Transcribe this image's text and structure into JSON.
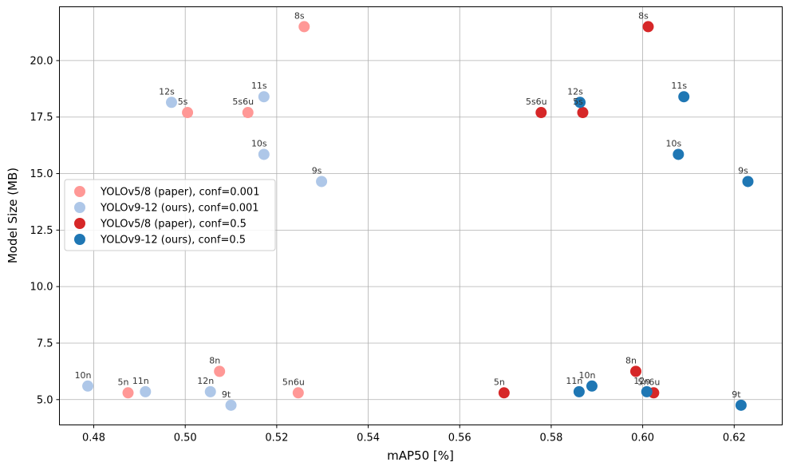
{
  "chart_data": {
    "type": "scatter",
    "xlabel": "mAP50 [%]",
    "ylabel": "Model Size (MB)",
    "xlim": [
      0.4725,
      0.6305
    ],
    "ylim": [
      3.88,
      22.38
    ],
    "xticks": [
      "0.48",
      "0.50",
      "0.52",
      "0.54",
      "0.56",
      "0.58",
      "0.60",
      "0.62"
    ],
    "xtick_values": [
      0.48,
      0.5,
      0.52,
      0.54,
      0.56,
      0.58,
      0.6,
      0.62
    ],
    "yticks": [
      "5.0",
      "7.5",
      "10.0",
      "12.5",
      "15.0",
      "17.5",
      "20.0"
    ],
    "ytick_values": [
      5.0,
      7.5,
      10.0,
      12.5,
      15.0,
      17.5,
      20.0
    ],
    "grid": true,
    "legend_position": "center-left",
    "series": [
      {
        "name": "YOLOv5/8 (paper), conf=0.001",
        "color": "#ff9896",
        "points": [
          {
            "label": "8s",
            "x": 0.526,
            "y": 21.5
          },
          {
            "label": "5s",
            "x": 0.5005,
            "y": 17.7
          },
          {
            "label": "5s6u",
            "x": 0.5137,
            "y": 17.7
          },
          {
            "label": "8n",
            "x": 0.5075,
            "y": 6.25
          },
          {
            "label": "5n",
            "x": 0.4875,
            "y": 5.3
          },
          {
            "label": "5n6u",
            "x": 0.5247,
            "y": 5.3
          }
        ]
      },
      {
        "name": "YOLOv9-12 (ours), conf=0.001",
        "color": "#aec7e8",
        "points": [
          {
            "label": "12s",
            "x": 0.497,
            "y": 18.15
          },
          {
            "label": "11s",
            "x": 0.5172,
            "y": 18.4
          },
          {
            "label": "10s",
            "x": 0.5172,
            "y": 15.85
          },
          {
            "label": "9s",
            "x": 0.5298,
            "y": 14.65
          },
          {
            "label": "10n",
            "x": 0.4787,
            "y": 5.6
          },
          {
            "label": "11n",
            "x": 0.4913,
            "y": 5.35
          },
          {
            "label": "12n",
            "x": 0.5055,
            "y": 5.35
          },
          {
            "label": "9t",
            "x": 0.51,
            "y": 4.75
          }
        ]
      },
      {
        "name": "YOLOv5/8 (paper), conf=0.5",
        "color": "#d62728",
        "points": [
          {
            "label": "8s",
            "x": 0.6012,
            "y": 21.5
          },
          {
            "label": "5s6u",
            "x": 0.5778,
            "y": 17.7
          },
          {
            "label": "5s",
            "x": 0.5869,
            "y": 17.7
          },
          {
            "label": "8n",
            "x": 0.5985,
            "y": 6.25
          },
          {
            "label": "5n",
            "x": 0.5697,
            "y": 5.3
          },
          {
            "label": "5n6u",
            "x": 0.6024,
            "y": 5.3
          }
        ]
      },
      {
        "name": "YOLOv9-12 (ours), conf=0.5",
        "color": "#1f77b4",
        "points": [
          {
            "label": "12s",
            "x": 0.5863,
            "y": 18.15
          },
          {
            "label": "11s",
            "x": 0.609,
            "y": 18.4
          },
          {
            "label": "10s",
            "x": 0.6078,
            "y": 15.85
          },
          {
            "label": "9s",
            "x": 0.623,
            "y": 14.65
          },
          {
            "label": "11n",
            "x": 0.5861,
            "y": 5.35
          },
          {
            "label": "10n",
            "x": 0.5889,
            "y": 5.6
          },
          {
            "label": "12n",
            "x": 0.6009,
            "y": 5.35
          },
          {
            "label": "9t",
            "x": 0.6215,
            "y": 4.75
          }
        ]
      }
    ]
  }
}
